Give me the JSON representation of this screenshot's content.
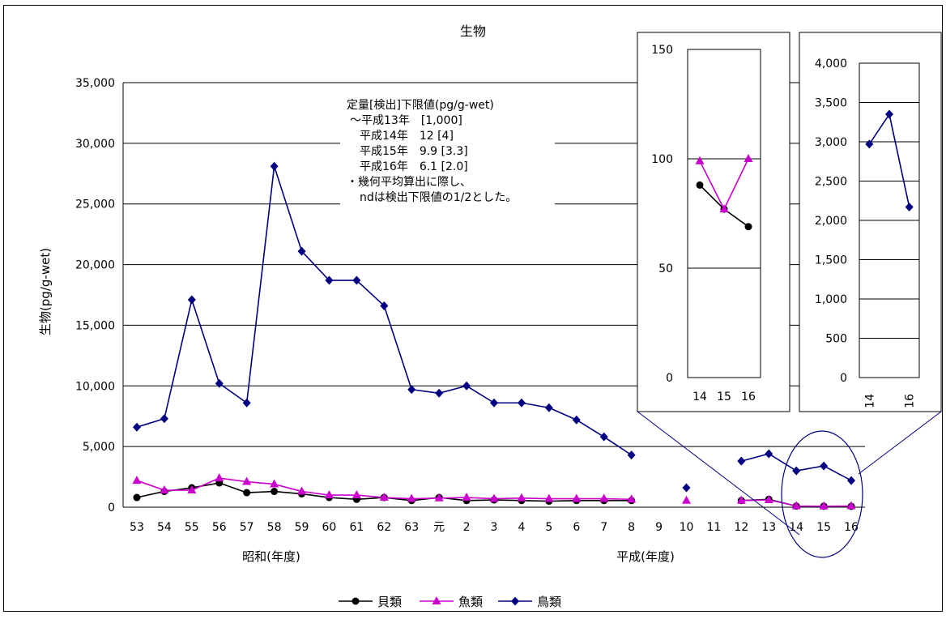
{
  "chart_data": [
    {
      "type": "line",
      "title": "生物",
      "ylabel": "生物(pg/g-wet)",
      "ylim": [
        0,
        35000
      ],
      "yticks": [
        0,
        5000,
        10000,
        15000,
        20000,
        25000,
        30000,
        35000
      ],
      "ytick_labels": [
        "0",
        "5,000",
        "10,000",
        "15,000",
        "20,000",
        "25,000",
        "30,000",
        "35,000"
      ],
      "categories": [
        "53",
        "54",
        "55",
        "56",
        "57",
        "58",
        "59",
        "60",
        "61",
        "62",
        "63",
        "元",
        "2",
        "3",
        "4",
        "5",
        "6",
        "7",
        "8",
        "9",
        "10",
        "11",
        "12",
        "13",
        "14",
        "15",
        "16"
      ],
      "era_labels": {
        "showa": "昭和(年度)",
        "heisei": "平成(年度)"
      },
      "grid": true,
      "legend_position": "bottom",
      "series": [
        {
          "name": "貝類",
          "color": "#000000",
          "marker": "circle",
          "values": [
            800,
            1300,
            1600,
            2000,
            1200,
            1300,
            1100,
            800,
            650,
            800,
            550,
            800,
            550,
            600,
            550,
            500,
            550,
            550,
            550,
            null,
            null,
            null,
            550,
            650,
            90,
            80,
            70
          ]
        },
        {
          "name": "魚類",
          "color": "#CC00CC",
          "marker": "triangle",
          "values": [
            2200,
            1400,
            1400,
            2400,
            2100,
            1900,
            1300,
            1000,
            1000,
            800,
            700,
            750,
            800,
            700,
            750,
            700,
            700,
            700,
            650,
            null,
            550,
            null,
            550,
            600,
            100,
            80,
            100
          ]
        },
        {
          "name": "鳥類",
          "color": "#000080",
          "marker": "diamond",
          "values": [
            6600,
            7300,
            17100,
            10200,
            8600,
            28100,
            21100,
            18700,
            18700,
            16600,
            9700,
            9400,
            10000,
            8600,
            8600,
            8200,
            7200,
            5800,
            4300,
            null,
            1600,
            null,
            3800,
            4400,
            3000,
            3400,
            2200
          ]
        }
      ],
      "annotation": [
        "定量[検出]下限値(pg/g-wet)",
        "～平成13年　[1,000]",
        "平成14年　12 [4]",
        "平成15年　9.9 [3.3]",
        "平成16年　6.1 [2.0]",
        "・幾何平均算出に際し、",
        "ndは検出下限値の1/2とした。"
      ]
    },
    {
      "type": "line",
      "title": "",
      "ylim": [
        0,
        150
      ],
      "yticks": [
        0,
        50,
        100,
        150
      ],
      "ytick_labels": [
        "0",
        "50",
        "100",
        "150"
      ],
      "categories": [
        "14",
        "15",
        "16"
      ],
      "series": [
        {
          "name": "貝類",
          "color": "#000000",
          "marker": "circle",
          "values": [
            88,
            77,
            69
          ]
        },
        {
          "name": "魚類",
          "color": "#CC00CC",
          "marker": "triangle",
          "values": [
            99,
            77,
            100
          ]
        }
      ]
    },
    {
      "type": "line",
      "title": "",
      "ylim": [
        0,
        4000
      ],
      "yticks": [
        0,
        500,
        1000,
        1500,
        2000,
        2500,
        3000,
        3500,
        4000
      ],
      "ytick_labels": [
        "0",
        "500",
        "1,000",
        "1,500",
        "2,000",
        "2,500",
        "3,000",
        "3,500",
        "4,000"
      ],
      "categories": [
        "14",
        "15",
        "16"
      ],
      "category_labels_shown": [
        "14",
        "",
        "16"
      ],
      "series": [
        {
          "name": "鳥類",
          "color": "#000080",
          "marker": "diamond",
          "values": [
            2970,
            3350,
            2170
          ]
        }
      ]
    }
  ]
}
